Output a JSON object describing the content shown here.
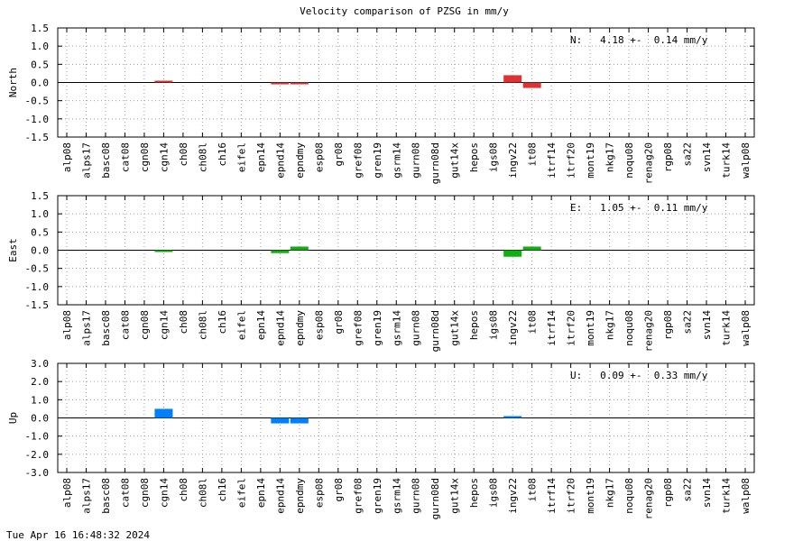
{
  "title": "Velocity comparison of PZSG in mm/y",
  "timestamp": "Tue Apr 16 16:48:32 2024",
  "chart_data": [
    {
      "type": "bar",
      "ylabel": "North",
      "annotation": "N:   4.18 +-  0.14 mm/y",
      "color": "#e03232",
      "categories": [
        "alp08",
        "alps17",
        "basc08",
        "cat08",
        "cgn08",
        "cgn14",
        "ch08",
        "ch08l",
        "ch16",
        "eifel",
        "epn14",
        "epnd14",
        "epndmy",
        "esp08",
        "gr08",
        "gref08",
        "gren19",
        "gsrm14",
        "gurn08",
        "gurn08d",
        "gut14x",
        "hepos",
        "igs08",
        "ingv22",
        "it08",
        "itrf14",
        "itrf20",
        "mont19",
        "nkg17",
        "noqu08",
        "renag20",
        "rgp08",
        "sa22",
        "svn14",
        "turk14",
        "walp08"
      ],
      "values": [
        null,
        null,
        null,
        null,
        null,
        0.05,
        null,
        null,
        null,
        null,
        null,
        -0.05,
        -0.05,
        null,
        null,
        null,
        null,
        null,
        null,
        null,
        null,
        null,
        null,
        0.2,
        -0.15,
        null,
        null,
        null,
        null,
        null,
        null,
        null,
        null,
        null,
        null,
        null
      ],
      "ylim": [
        -1.5,
        1.5
      ],
      "yticks": [
        -1.5,
        {
          "value": -1,
          "label": "-1.0"
        },
        -0.5,
        {
          "value": 0,
          "label": "0.0"
        },
        0.5,
        {
          "value": 1,
          "label": "1.0"
        },
        1.5
      ],
      "grid": true
    },
    {
      "type": "bar",
      "ylabel": "East",
      "annotation": "E:   1.05 +-  0.11 mm/y",
      "color": "#10b010",
      "categories": [
        "alp08",
        "alps17",
        "basc08",
        "cat08",
        "cgn08",
        "cgn14",
        "ch08",
        "ch08l",
        "ch16",
        "eifel",
        "epn14",
        "epnd14",
        "epndmy",
        "esp08",
        "gr08",
        "gref08",
        "gren19",
        "gsrm14",
        "gurn08",
        "gurn08d",
        "gut14x",
        "hepos",
        "igs08",
        "ingv22",
        "it08",
        "itrf14",
        "itrf20",
        "mont19",
        "nkg17",
        "noqu08",
        "renag20",
        "rgp08",
        "sa22",
        "svn14",
        "turk14",
        "walp08"
      ],
      "values": [
        null,
        null,
        null,
        null,
        null,
        -0.02,
        null,
        null,
        null,
        null,
        null,
        -0.08,
        0.1,
        null,
        null,
        null,
        null,
        null,
        null,
        null,
        null,
        null,
        null,
        -0.18,
        0.1,
        null,
        null,
        null,
        null,
        null,
        null,
        null,
        null,
        null,
        null,
        null
      ],
      "ylim": [
        -1.5,
        1.5
      ],
      "yticks": [
        -1.5,
        {
          "value": -1,
          "label": "-1.0"
        },
        -0.5,
        {
          "value": 0,
          "label": "0.0"
        },
        0.5,
        {
          "value": 1,
          "label": "1.0"
        },
        1.5
      ],
      "grid": true
    },
    {
      "type": "bar",
      "ylabel": "Up",
      "annotation": "U:   0.09 +-  0.33 mm/y",
      "color": "#0080ff",
      "categories": [
        "alp08",
        "alps17",
        "basc08",
        "cat08",
        "cgn08",
        "cgn14",
        "ch08",
        "ch08l",
        "ch16",
        "eifel",
        "epn14",
        "epnd14",
        "epndmy",
        "esp08",
        "gr08",
        "gref08",
        "gren19",
        "gsrm14",
        "gurn08",
        "gurn08d",
        "gut14x",
        "hepos",
        "igs08",
        "ingv22",
        "it08",
        "itrf14",
        "itrf20",
        "mont19",
        "nkg17",
        "noqu08",
        "renag20",
        "rgp08",
        "sa22",
        "svn14",
        "turk14",
        "walp08"
      ],
      "values": [
        null,
        null,
        null,
        null,
        null,
        0.5,
        null,
        null,
        null,
        null,
        null,
        -0.3,
        -0.3,
        null,
        null,
        null,
        null,
        null,
        null,
        null,
        null,
        null,
        null,
        0.1,
        null,
        null,
        null,
        null,
        null,
        null,
        null,
        null,
        null,
        null,
        null,
        null
      ],
      "ylim": [
        -3,
        3
      ],
      "yticks": [
        {
          "value": -3,
          "label": "-3.0"
        },
        {
          "value": -2,
          "label": "-2.0"
        },
        {
          "value": -1,
          "label": "-1.0"
        },
        {
          "value": 0,
          "label": "0.0"
        },
        {
          "value": 1,
          "label": "1.0"
        },
        {
          "value": 2,
          "label": "2.0"
        },
        {
          "value": 3,
          "label": "3.0"
        }
      ],
      "grid": true
    }
  ]
}
